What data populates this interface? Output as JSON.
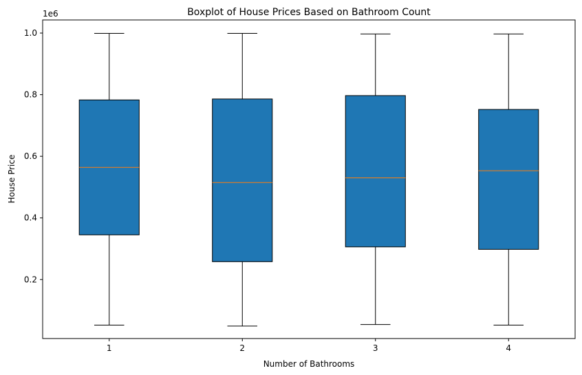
{
  "chart_data": {
    "type": "box",
    "title": "Boxplot of House Prices Based on Bathroom Count",
    "xlabel": "Number of Bathrooms",
    "ylabel": "House Price",
    "y_offset_label": "1e6",
    "ylim": [
      0.0085,
      1.0425
    ],
    "yticks": [
      0.2,
      0.4,
      0.6,
      0.8,
      1.0
    ],
    "ytick_labels": [
      "0.2",
      "0.4",
      "0.6",
      "0.8",
      "1.0"
    ],
    "categories": [
      "1",
      "2",
      "3",
      "4"
    ],
    "boxes": [
      {
        "whisker_low": 0.052,
        "q1": 0.345,
        "median": 0.564,
        "q3": 0.783,
        "whisker_high": 0.999
      },
      {
        "whisker_low": 0.049,
        "q1": 0.258,
        "median": 0.515,
        "q3": 0.786,
        "whisker_high": 0.999
      },
      {
        "whisker_low": 0.054,
        "q1": 0.306,
        "median": 0.53,
        "q3": 0.797,
        "whisker_high": 0.997
      },
      {
        "whisker_low": 0.052,
        "q1": 0.298,
        "median": 0.553,
        "q3": 0.752,
        "whisker_high": 0.997
      }
    ],
    "box_color": "#1f77b4",
    "median_color": "#ff7f0e",
    "grid": false,
    "legend": "none"
  }
}
